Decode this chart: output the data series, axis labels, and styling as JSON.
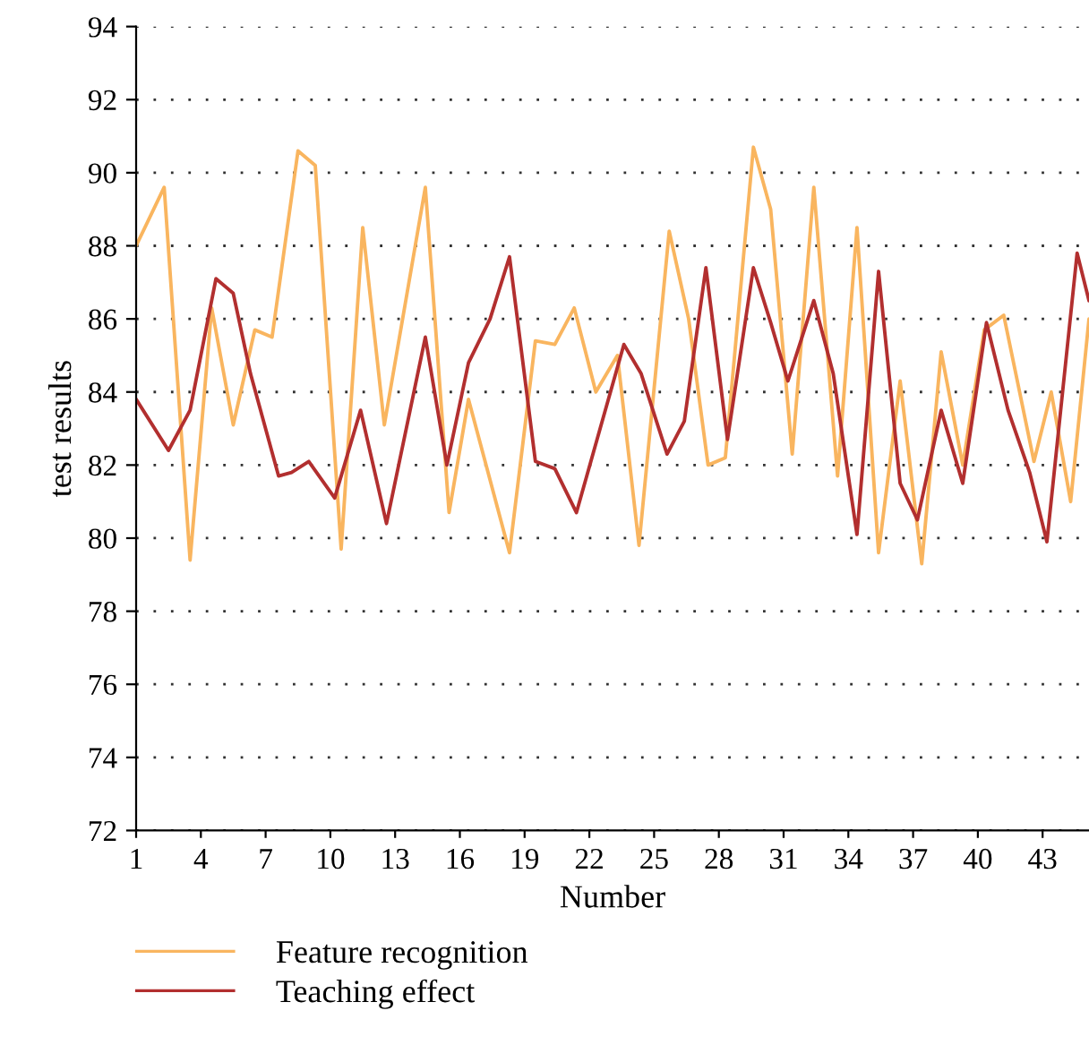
{
  "chart_data": {
    "type": "line",
    "xlabel": "Number",
    "ylabel": "test results",
    "xlim": [
      1,
      45.15
    ],
    "xticks": [
      1,
      4,
      7,
      10,
      13,
      16,
      19,
      22,
      25,
      28,
      31,
      34,
      37,
      40,
      43
    ],
    "ylim": [
      72,
      94
    ],
    "yticks": [
      72,
      74,
      76,
      78,
      80,
      82,
      84,
      86,
      88,
      90,
      92,
      94
    ],
    "grid": "y",
    "legend": "bottom",
    "line_style": "solid",
    "series": [
      {
        "name": "Feature recognition",
        "color": "#f9b55f",
        "x": [
          1,
          2.3,
          3.5,
          4.5,
          5.5,
          6.5,
          7.3,
          8.5,
          9.3,
          10.5,
          11.5,
          12.5,
          14.4,
          15.5,
          16.4,
          18.3,
          19.5,
          20.4,
          21.3,
          22.3,
          23.3,
          24.3,
          25.7,
          26.6,
          27.5,
          28.3,
          29.6,
          30.4,
          31.4,
          32.4,
          33.5,
          34.4,
          35.4,
          36.4,
          37.4,
          38.3,
          39.3,
          40.3,
          41.2,
          42.6,
          43.4,
          44.3,
          45.15
        ],
        "values": [
          88.0,
          89.6,
          79.4,
          86.3,
          83.1,
          85.7,
          85.5,
          90.6,
          90.2,
          79.7,
          88.5,
          83.1,
          89.6,
          80.7,
          83.8,
          79.6,
          85.4,
          85.3,
          86.3,
          84.0,
          85.0,
          79.8,
          88.4,
          86.0,
          82.0,
          82.2,
          90.7,
          89.0,
          82.3,
          89.6,
          81.7,
          88.5,
          79.6,
          84.3,
          79.3,
          85.1,
          82.0,
          85.7,
          86.1,
          82.1,
          84.0,
          81.0,
          86.0
        ]
      },
      {
        "name": "Teaching effect",
        "color": "#b22f2f",
        "x": [
          1,
          2.5,
          3.5,
          4.7,
          5.5,
          6.3,
          7.6,
          8.2,
          9.0,
          10.2,
          11.4,
          12.6,
          14.4,
          15.4,
          16.4,
          17.4,
          18.3,
          19.5,
          20.4,
          21.4,
          22.5,
          23.6,
          24.4,
          25.6,
          26.4,
          27.4,
          28.4,
          29.6,
          30.4,
          31.2,
          32.4,
          33.3,
          34.4,
          35.4,
          36.4,
          37.2,
          38.3,
          39.3,
          40.4,
          41.4,
          42.4,
          43.2,
          44.6,
          45.15
        ],
        "values": [
          83.8,
          82.4,
          83.5,
          87.1,
          86.7,
          84.5,
          81.7,
          81.8,
          82.1,
          81.1,
          83.5,
          80.4,
          85.5,
          82.0,
          84.8,
          86.0,
          87.7,
          82.1,
          81.9,
          80.7,
          83.0,
          85.3,
          84.5,
          82.3,
          83.2,
          87.4,
          82.7,
          87.4,
          85.9,
          84.3,
          86.5,
          84.5,
          80.1,
          87.3,
          81.5,
          80.5,
          83.5,
          81.5,
          85.9,
          83.5,
          81.8,
          79.9,
          87.8,
          86.5
        ]
      }
    ]
  }
}
